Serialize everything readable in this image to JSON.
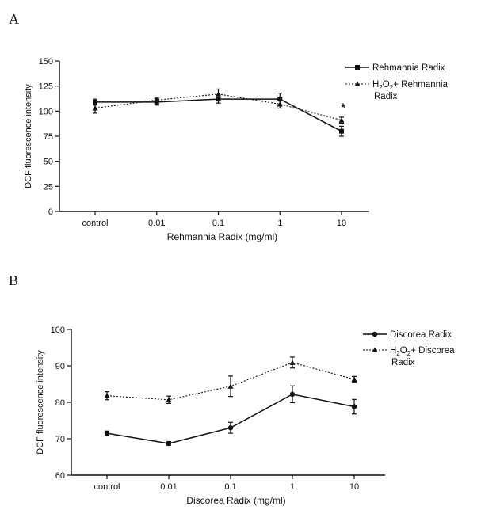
{
  "panels": [
    {
      "letter": "A"
    },
    {
      "letter": "B"
    }
  ],
  "chart_data": [
    {
      "type": "line",
      "xlabel": "Rehmannia Radix (mg/ml)",
      "ylabel": "DCF fluorescence intensity",
      "categories": [
        "control",
        "0.01",
        "0.1",
        "1",
        "10"
      ],
      "ylim": [
        0,
        150
      ],
      "yticks": [
        "0",
        "25",
        "50",
        "75",
        "100",
        "125",
        "150"
      ],
      "legend_position": "top-right",
      "series": [
        {
          "name": "Rehmannia Radix",
          "style": "solid",
          "marker": "square",
          "values": [
            109,
            109,
            112,
            112,
            80
          ],
          "errors": [
            3,
            3,
            4,
            6,
            5
          ]
        },
        {
          "name": "H2O2+ Rehmannia Radix",
          "style": "dotted",
          "marker": "triangle",
          "values": [
            103,
            111,
            117,
            107,
            91
          ],
          "errors": [
            5,
            2,
            5,
            4,
            3
          ]
        }
      ],
      "annotations": [
        {
          "text": "*",
          "category": "10",
          "y": 100
        }
      ]
    },
    {
      "type": "line",
      "xlabel": "Discorea Radix (mg/ml)",
      "ylabel": "DCF fluorescence intensity",
      "categories": [
        "control",
        "0.01",
        "0.1",
        "1",
        "10"
      ],
      "ylim": [
        60,
        100
      ],
      "yticks": [
        "60",
        "70",
        "80",
        "90",
        "100"
      ],
      "legend_position": "top-right",
      "series": [
        {
          "name": "Discorea Radix",
          "style": "solid",
          "marker": "circle",
          "values": [
            71.5,
            68.7,
            73,
            82.2,
            78.8
          ],
          "errors": [
            0.6,
            0.5,
            1.5,
            2.3,
            2.0
          ]
        },
        {
          "name": "H2O2+ Discorea Radix",
          "style": "dotted",
          "marker": "triangle",
          "values": [
            81.8,
            80.7,
            84.4,
            90.9,
            86.3
          ],
          "errors": [
            1.1,
            1.0,
            2.8,
            1.5,
            0.8
          ]
        }
      ]
    }
  ]
}
